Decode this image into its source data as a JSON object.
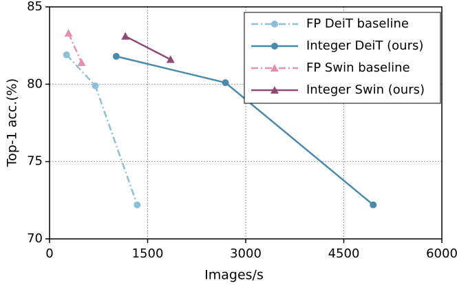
{
  "chart_data": {
    "type": "line",
    "xlabel": "Images/s",
    "ylabel": "Top-1 acc.(%)",
    "xlim": [
      0,
      6000
    ],
    "xticks": [
      0,
      1500,
      3000,
      4500,
      6000
    ],
    "ylim": [
      70,
      85
    ],
    "yticks": [
      70,
      75,
      80,
      85
    ],
    "grid": true,
    "legend": "upper right",
    "series": [
      {
        "name": "FP DeiT baseline",
        "color": "#8dc0d6",
        "linestyle": "dashdot",
        "marker": "circle",
        "x": [
          260,
          700,
          1340
        ],
        "values": [
          81.9,
          79.9,
          72.2
        ]
      },
      {
        "name": "Integer DeiT (ours)",
        "color": "#4a89aa",
        "linestyle": "solid",
        "marker": "circle",
        "x": [
          1020,
          2690,
          4950
        ],
        "values": [
          81.8,
          80.1,
          72.2
        ]
      },
      {
        "name": "FP Swin baseline",
        "color": "#e390b2",
        "linestyle": "dashdot",
        "marker": "triangle",
        "x": [
          290,
          490
        ],
        "values": [
          83.3,
          81.4
        ]
      },
      {
        "name": "Integer Swin (ours)",
        "color": "#8e4b73",
        "linestyle": "solid",
        "marker": "triangle",
        "x": [
          1160,
          1850
        ],
        "values": [
          83.1,
          81.6
        ]
      }
    ]
  }
}
